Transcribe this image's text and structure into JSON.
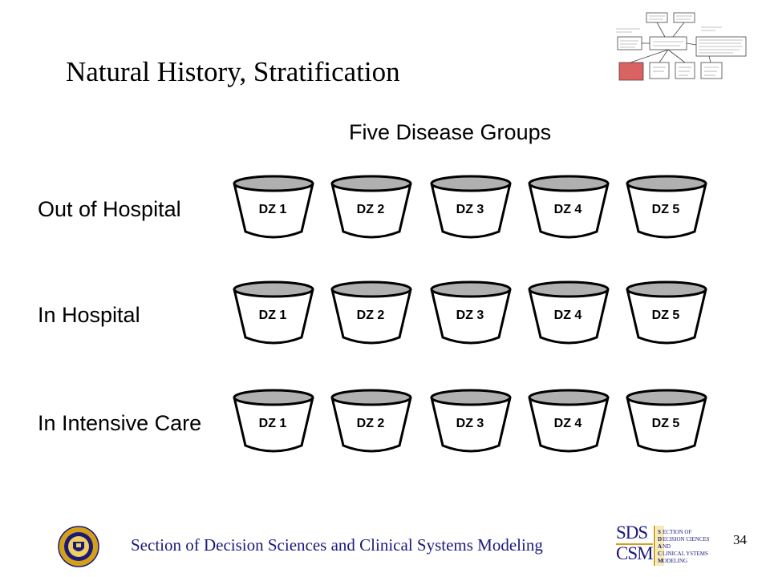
{
  "slide": {
    "title": "Natural History, Stratification",
    "subtitle": "Five Disease Groups",
    "page_number": "34",
    "footer": "Section of Decision Sciences and Clinical Systems Modeling"
  },
  "rows": [
    {
      "label": "Out of Hospital",
      "buckets": [
        "DZ 1",
        "DZ 2",
        "DZ 3",
        "DZ 4",
        "DZ 5"
      ]
    },
    {
      "label": "In Hospital",
      "buckets": [
        "DZ 1",
        "DZ 2",
        "DZ 3",
        "DZ 4",
        "DZ 5"
      ]
    },
    {
      "label": "In Intensive Care",
      "buckets": [
        "DZ 1",
        "DZ 2",
        "DZ 3",
        "DZ 4",
        "DZ 5"
      ]
    }
  ],
  "logo": {
    "line1": "SDS",
    "line2": "CSM",
    "words": [
      "ECTION OF",
      "ECISION CIENCES",
      "ND",
      "LINICAL YSTEMS",
      "ODELING"
    ],
    "initials": [
      "S",
      "D",
      "A",
      "C",
      "M"
    ]
  },
  "colors": {
    "footer_text": "#1a1a7a",
    "bucket_rim": "#b0b0b0",
    "highlight_box": "#e06060"
  }
}
